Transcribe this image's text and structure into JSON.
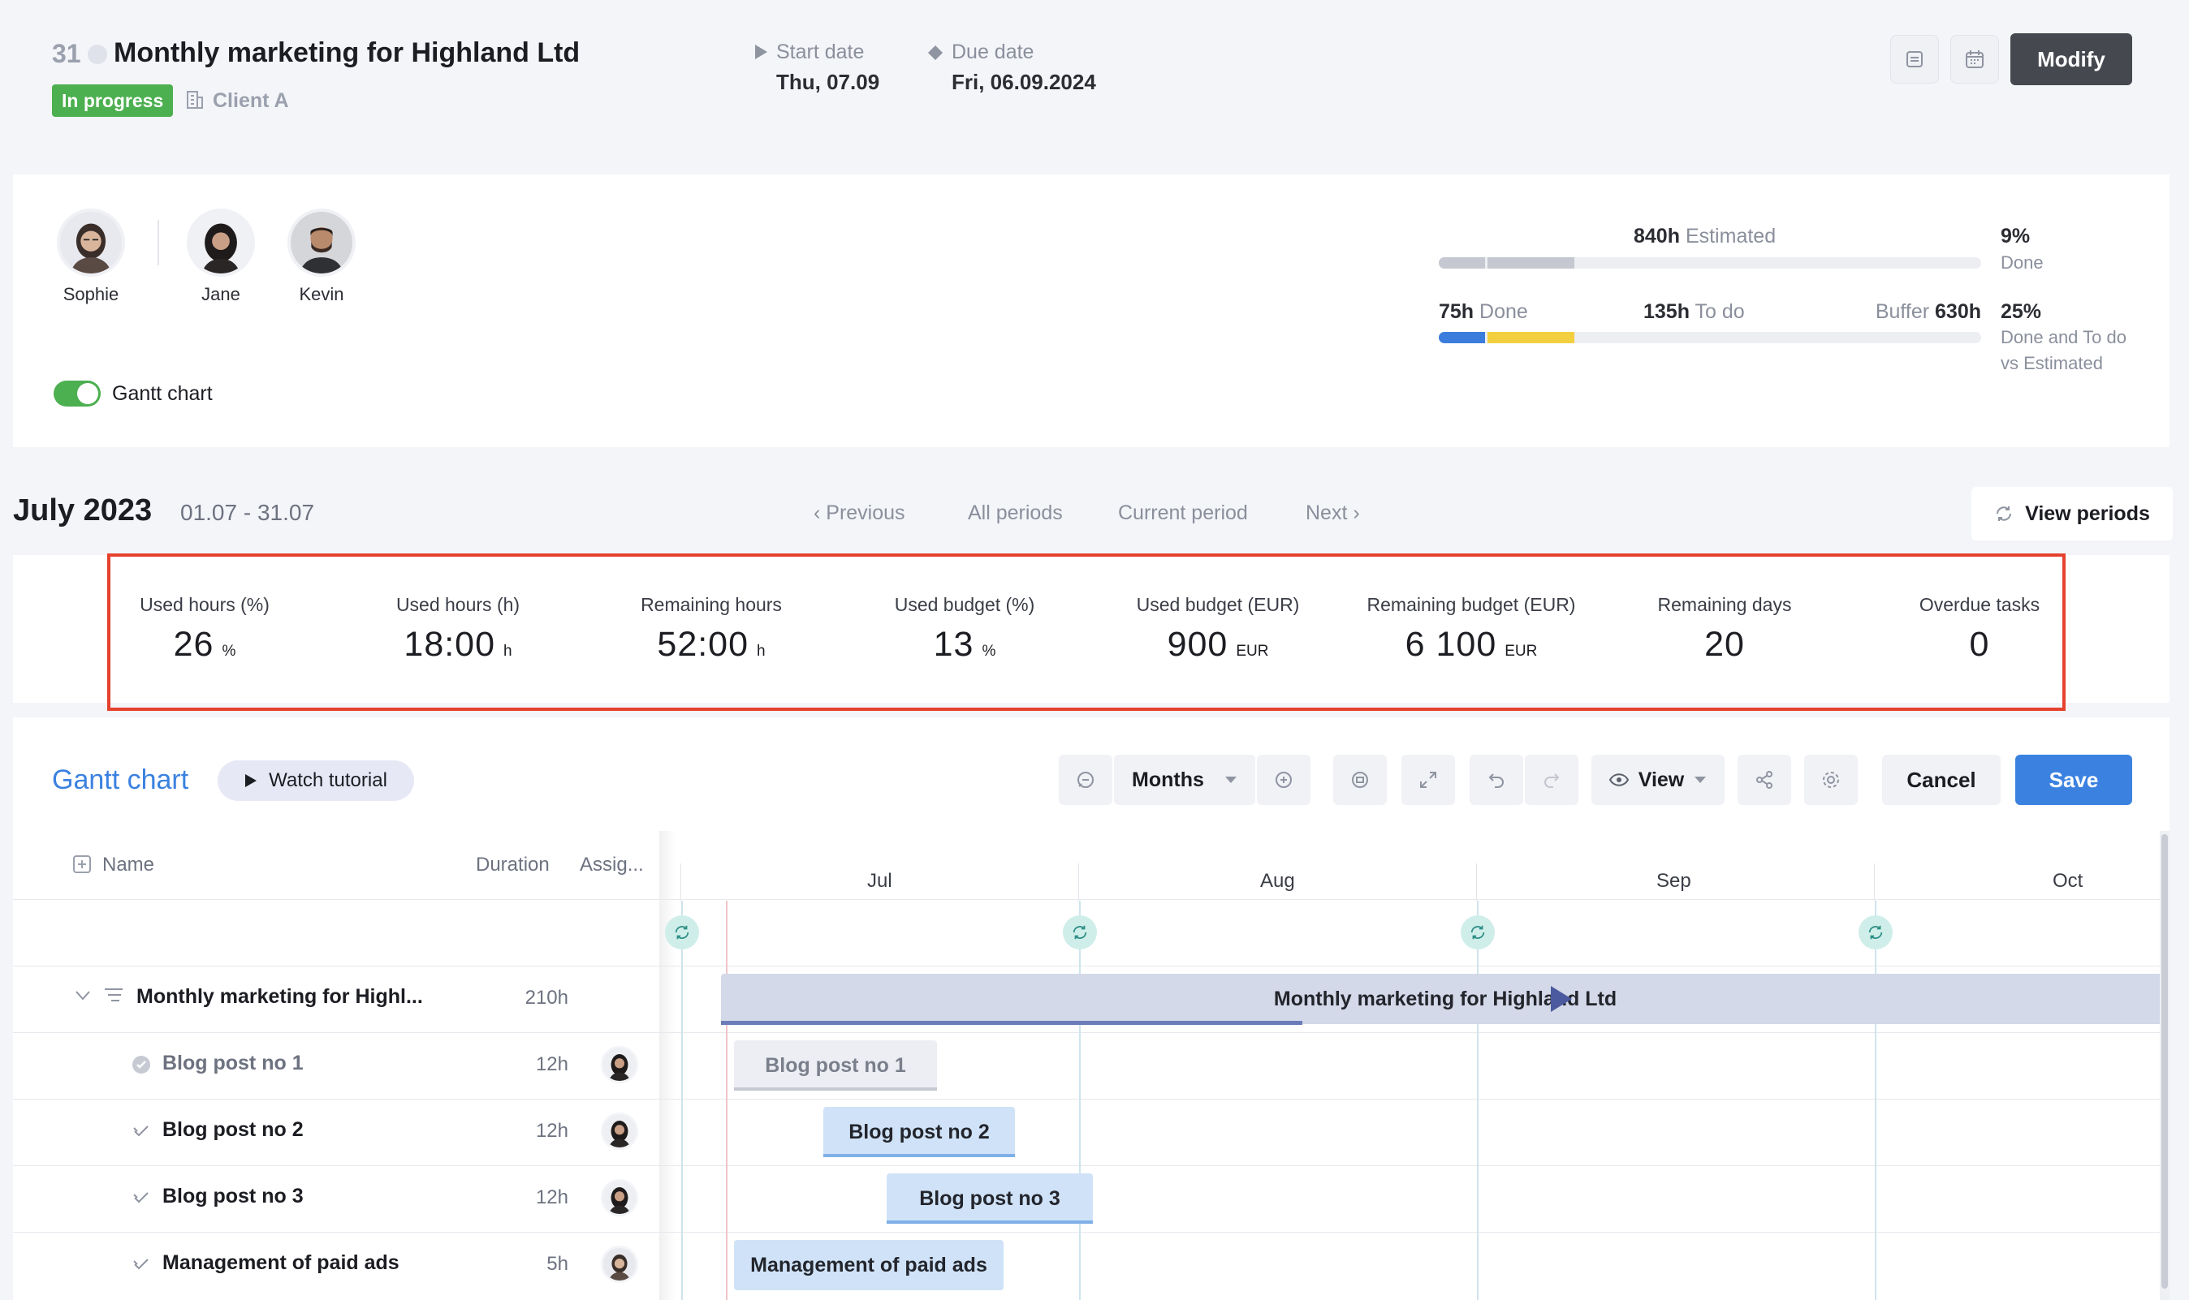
{
  "header": {
    "task_id": "31",
    "title": "Monthly marketing for Highland Ltd",
    "status": "In progress",
    "client": "Client A",
    "start_label": "Start date",
    "start_value": "Thu, 07.09",
    "due_label": "Due date",
    "due_value": "Fri, 06.09.2024",
    "modify_label": "Modify"
  },
  "team": {
    "members": [
      {
        "name": "Sophie"
      },
      {
        "name": "Jane"
      },
      {
        "name": "Kevin"
      }
    ],
    "gantt_toggle_label": "Gantt chart",
    "gantt_toggle_on": true
  },
  "progress": {
    "estimated_value": "840h",
    "estimated_label": "Estimated",
    "done_value": "75h",
    "done_label": "Done",
    "todo_value": "135h",
    "todo_label": "To do",
    "buffer_label": "Buffer",
    "buffer_value": "630h",
    "pct_done": "9%",
    "pct_done_label": "Done",
    "pct_done_todo": "25%",
    "pct_done_todo_label_1": "Done and To do",
    "pct_done_todo_label_2": "vs Estimated",
    "done_fraction": 0.0893,
    "todo_fraction": 0.1607,
    "colors": {
      "done": "#3b7ddd",
      "todo": "#f2cf3f",
      "estimated_gray": "#c5c8d1"
    }
  },
  "period": {
    "title": "July 2023",
    "range": "01.07 - 31.07",
    "previous": "Previous",
    "all_periods": "All periods",
    "current_period": "Current period",
    "next": "Next",
    "view_periods": "View periods"
  },
  "metrics": [
    {
      "label": "Used hours (%)",
      "value": "26",
      "unit": "%"
    },
    {
      "label": "Used hours (h)",
      "value": "18:00",
      "unit": "h"
    },
    {
      "label": "Remaining hours",
      "value": "52:00",
      "unit": "h"
    },
    {
      "label": "Used budget (%)",
      "value": "13",
      "unit": "%"
    },
    {
      "label": "Used budget (EUR)",
      "value": "900",
      "unit": "EUR"
    },
    {
      "label": "Remaining budget (EUR)",
      "value": "6 100",
      "unit": "EUR"
    },
    {
      "label": "Remaining days",
      "value": "20",
      "unit": ""
    },
    {
      "label": "Overdue tasks",
      "value": "0",
      "unit": ""
    }
  ],
  "gantt": {
    "title": "Gantt chart",
    "watch_tutorial": "Watch tutorial",
    "scale": "Months",
    "view_label": "View",
    "cancel_label": "Cancel",
    "save_label": "Save",
    "columns": {
      "name": "Name",
      "duration": "Duration",
      "assignee": "Assig..."
    },
    "months": [
      "Jul",
      "Aug",
      "Sep",
      "Oct"
    ],
    "summary": {
      "name": "Monthly marketing for Highl...",
      "duration": "210h",
      "bar_label": "Monthly marketing for Highland Ltd"
    },
    "tasks": [
      {
        "name": "Blog post no 1",
        "duration": "12h",
        "bar_label": "Blog post no 1",
        "state": "done"
      },
      {
        "name": "Blog post no 2",
        "duration": "12h",
        "bar_label": "Blog post no 2",
        "state": "open"
      },
      {
        "name": "Blog post no 3",
        "duration": "12h",
        "bar_label": "Blog post no 3",
        "state": "open"
      },
      {
        "name": "Management of paid ads",
        "duration": "5h",
        "bar_label": "Management of paid ads",
        "state": "open"
      }
    ]
  },
  "colors": {
    "accent_blue": "#3b82e0",
    "status_green": "#4caf50",
    "highlight_red": "#e6412e",
    "modify_dark": "#45484f"
  }
}
